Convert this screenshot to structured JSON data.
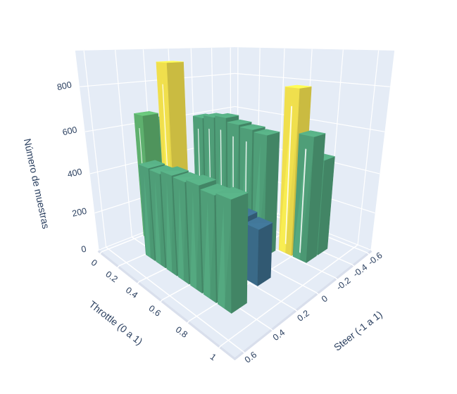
{
  "chart_data": {
    "type": "bar",
    "subtype": "3d-histogram2d",
    "title": "",
    "x_axis": {
      "title": "Throttle (0 a 1)",
      "tick_values": [
        0,
        0.2,
        0.4,
        0.6,
        0.8,
        1
      ],
      "tick_labels": [
        "0",
        "0.2",
        "0.4",
        "0.6",
        "0.8",
        "1"
      ],
      "range": [
        -0.03,
        1.08
      ]
    },
    "y_axis": {
      "title": "Steer (-1 a 1)",
      "tick_values": [
        0.6,
        0.4,
        0.2,
        0,
        -0.2,
        -0.4,
        -0.6
      ],
      "tick_labels": [
        "0.6",
        "0.4",
        "0.2",
        "0",
        "-0.2",
        "-0.4",
        "-0.6"
      ],
      "range": [
        0.65,
        -0.65
      ]
    },
    "z_axis": {
      "title": "Número de muestras",
      "tick_values": [
        0,
        200,
        400,
        600,
        800
      ],
      "tick_labels": [
        "0",
        "200",
        "400",
        "600",
        "800"
      ],
      "range": [
        0,
        950
      ]
    },
    "bars": [
      {
        "throttle": 0.15,
        "steer": -0.13,
        "count": 615,
        "color": "#4F9E78"
      },
      {
        "throttle": 0.25,
        "steer": -0.13,
        "count": 630,
        "color": "#4F9E78"
      },
      {
        "throttle": 0.35,
        "steer": -0.13,
        "count": 640,
        "color": "#4F9E78"
      },
      {
        "throttle": 0.45,
        "steer": -0.13,
        "count": 620,
        "color": "#4F9E78"
      },
      {
        "throttle": 0.55,
        "steer": -0.13,
        "count": 610,
        "color": "#4F9E78"
      },
      {
        "throttle": 0.65,
        "steer": -0.13,
        "count": 600,
        "color": "#4F9E78"
      },
      {
        "throttle": 0.75,
        "steer": -0.27,
        "count": 800,
        "color": "#F0DF4D"
      },
      {
        "throttle": 0.85,
        "steer": -0.27,
        "count": 605,
        "color": "#4F9E78"
      },
      {
        "throttle": 0.85,
        "steer": -0.4,
        "count": 480,
        "color": "#4F9E78"
      },
      {
        "throttle": 0.05,
        "steer": 0.13,
        "count": 620,
        "color": "#4F9E78"
      },
      {
        "throttle": 0.05,
        "steer": 0.27,
        "count": 655,
        "color": "#5EB06E"
      },
      {
        "throttle": 0.3,
        "steer": 0.27,
        "count": 905,
        "color": "#F0DF4D"
      },
      {
        "throttle": 0.6,
        "steer": 0.13,
        "count": 300,
        "color": "#3A6A88"
      },
      {
        "throttle": 0.7,
        "steer": 0.13,
        "count": 285,
        "color": "#3A6A88"
      },
      {
        "throttle": 0.8,
        "steer": 0.13,
        "count": 265,
        "color": "#3A6A88"
      },
      {
        "throttle": 0.25,
        "steer": 0.4,
        "count": 460,
        "color": "#4F9E78"
      },
      {
        "throttle": 0.35,
        "steer": 0.4,
        "count": 455,
        "color": "#4F9E78"
      },
      {
        "throttle": 0.45,
        "steer": 0.4,
        "count": 470,
        "color": "#4F9E78"
      },
      {
        "throttle": 0.55,
        "steer": 0.4,
        "count": 465,
        "color": "#4F9E78"
      },
      {
        "throttle": 0.65,
        "steer": 0.4,
        "count": 475,
        "color": "#4F9E78"
      },
      {
        "throttle": 0.75,
        "steer": 0.4,
        "count": 460,
        "color": "#4F9E78"
      },
      {
        "throttle": 0.85,
        "steer": 0.4,
        "count": 470,
        "color": "#4F9E78"
      }
    ],
    "colorscale": {
      "low_count": "#3A6A88",
      "mid_count": "#4F9E78",
      "mid_high_count": "#5EB06E",
      "high_count": "#F0DF4D"
    },
    "layout_hints": {
      "grid": "on",
      "legend": "none",
      "scene_background": "#E5ECF6",
      "grid_color": "#FFFFFF",
      "font_color": "#2a3f5f",
      "edge_band_color": "#D9DFEC"
    }
  }
}
